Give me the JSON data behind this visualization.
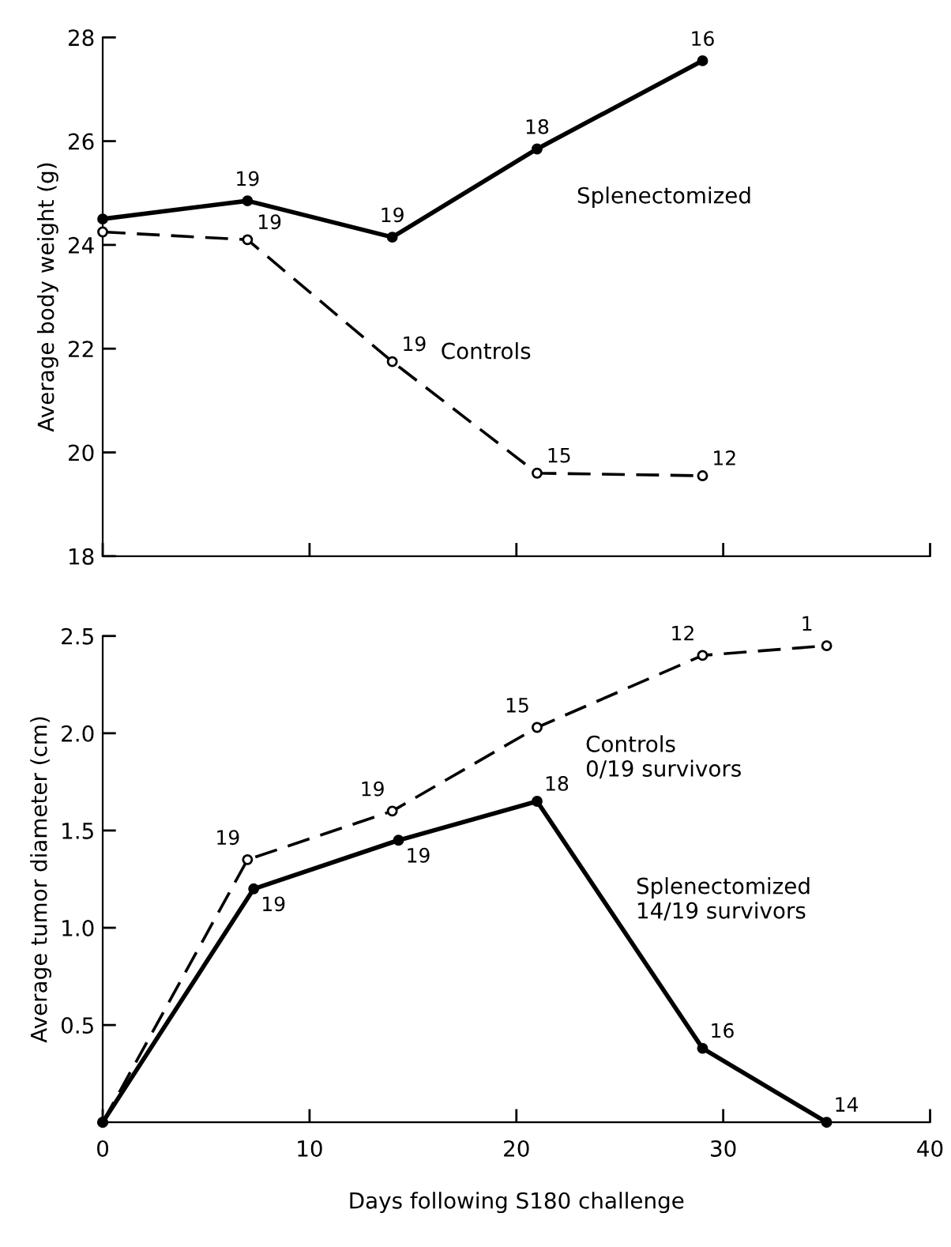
{
  "chart_data": [
    {
      "type": "line",
      "ylabel": "Average body weight (g)",
      "x": [
        0,
        7,
        14,
        21,
        29
      ],
      "xlim": [
        0,
        40
      ],
      "xticks": [
        0,
        10,
        20,
        30,
        40
      ],
      "ylim": [
        18,
        28
      ],
      "yticks": [
        18,
        20,
        22,
        24,
        26,
        28
      ],
      "tick_labels": "y",
      "grid": false,
      "legend": false,
      "marker": "circle",
      "series": [
        {
          "name": "Splenectomized",
          "color": "#000000",
          "line_style": "solid",
          "values": [
            24.5,
            24.85,
            24.15,
            25.85,
            27.55
          ]
        },
        {
          "name": "Controls",
          "color": "#000000",
          "line_style": "dashed",
          "values": [
            24.25,
            24.1,
            21.75,
            19.6,
            19.55
          ]
        }
      ],
      "annotations": [
        {
          "text": "19",
          "x": 7,
          "y": 24.85
        },
        {
          "text": "19",
          "x": 14,
          "y": 24.15
        },
        {
          "text": "18",
          "x": 21,
          "y": 25.85
        },
        {
          "text": "16",
          "x": 29,
          "y": 27.55
        },
        {
          "text": "19",
          "x": 7,
          "y": 24.1
        },
        {
          "text": "19",
          "x": 14,
          "y": 21.75
        },
        {
          "text": "15",
          "x": 21,
          "y": 19.6
        },
        {
          "text": "12",
          "x": 29,
          "y": 19.55
        }
      ]
    },
    {
      "type": "line",
      "xlabel": "Days following S180 challenge",
      "ylabel": "Average tumor diameter (cm)",
      "xlim": [
        0,
        40
      ],
      "xticks": [
        0,
        10,
        20,
        30,
        40
      ],
      "ylim": [
        0,
        2.5
      ],
      "yticks": [
        {
          "value": 0.5,
          "label": "0.5"
        },
        {
          "value": 1.0,
          "label": "1.0"
        },
        {
          "value": 1.5,
          "label": "1.5"
        },
        {
          "value": 2.0,
          "label": "2.0"
        },
        {
          "value": 2.5,
          "label": "2.5"
        }
      ],
      "grid": false,
      "legend": false,
      "marker": "circle",
      "series": [
        {
          "name": "Controls\n0/19 survivors",
          "color": "#000000",
          "line_style": "dashed",
          "x": [
            0,
            7,
            14,
            21,
            29,
            35
          ],
          "values": [
            0,
            1.35,
            1.6,
            2.03,
            2.4,
            2.45
          ]
        },
        {
          "name": "Splenectomized\n14/19 survivors",
          "color": "#000000",
          "line_style": "solid",
          "x": [
            0,
            7.3,
            14.3,
            21,
            29,
            35
          ],
          "values": [
            0,
            1.2,
            1.45,
            1.65,
            0.38,
            0.0
          ]
        }
      ],
      "annotations": [
        {
          "text": "19",
          "x": 7,
          "y": 1.35
        },
        {
          "text": "19",
          "x": 14,
          "y": 1.6
        },
        {
          "text": "15",
          "x": 21,
          "y": 2.03
        },
        {
          "text": "12",
          "x": 29,
          "y": 2.4
        },
        {
          "text": "1",
          "x": 35,
          "y": 2.45
        },
        {
          "text": "19",
          "x": 7.3,
          "y": 1.2
        },
        {
          "text": "19",
          "x": 14.3,
          "y": 1.45
        },
        {
          "text": "18",
          "x": 21,
          "y": 1.65
        },
        {
          "text": "16",
          "x": 29,
          "y": 0.38
        },
        {
          "text": "14",
          "x": 35,
          "y": 0.0
        }
      ]
    }
  ]
}
